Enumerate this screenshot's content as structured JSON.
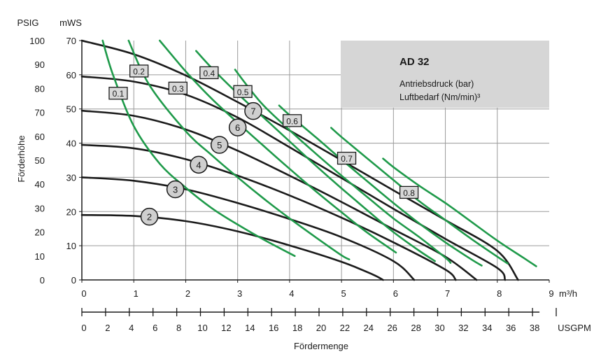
{
  "chart_data": {
    "type": "line",
    "title": "AD 32",
    "legend": [
      "Antriebsdruck (bar)",
      "Luftbedarf (Nm/min)³"
    ],
    "xlabel": "Fördermenge",
    "ylabel": "Förderhöhe",
    "x_unit": "m³/h",
    "x2_unit": "USGPM",
    "y_unit": "mWS",
    "y2_unit": "PSIG",
    "xlim": [
      0,
      9
    ],
    "ylim": [
      0,
      70
    ],
    "x_ticks": [
      "0",
      "1",
      "2",
      "3",
      "4",
      "5",
      "6",
      "7",
      "8",
      "9"
    ],
    "x2_ticks": [
      "0",
      "2",
      "4",
      "6",
      "8",
      "10",
      "12",
      "14",
      "16",
      "18",
      "20",
      "22",
      "24",
      "26",
      "28",
      "30",
      "32",
      "34",
      "36",
      "38"
    ],
    "y_ticks": [
      "0",
      "10",
      "20",
      "30",
      "40",
      "50",
      "60",
      "70"
    ],
    "y2_ticks": [
      "0",
      "10",
      "20",
      "30",
      "40",
      "50",
      "60",
      "70",
      "80",
      "90",
      "100"
    ],
    "grid": true,
    "pressure_curves": [
      {
        "name": "2",
        "points": [
          [
            0,
            19
          ],
          [
            1,
            18.7
          ],
          [
            2,
            17.2
          ],
          [
            3,
            14.2
          ],
          [
            4,
            10.1
          ],
          [
            5,
            5.3
          ],
          [
            5.6,
            1.6
          ],
          [
            5.8,
            0
          ]
        ]
      },
      {
        "name": "3",
        "points": [
          [
            0,
            30
          ],
          [
            1,
            29
          ],
          [
            2,
            26.5
          ],
          [
            3,
            22.5
          ],
          [
            4,
            17.8
          ],
          [
            5,
            12.5
          ],
          [
            6,
            5.5
          ],
          [
            6.4,
            0
          ]
        ]
      },
      {
        "name": "4",
        "points": [
          [
            0,
            39.5
          ],
          [
            1,
            38.5
          ],
          [
            2,
            35.3
          ],
          [
            3,
            30.5
          ],
          [
            4,
            24.7
          ],
          [
            5,
            18.2
          ],
          [
            6,
            11
          ],
          [
            7,
            3
          ],
          [
            7.2,
            0
          ]
        ]
      },
      {
        "name": "5",
        "points": [
          [
            0,
            49.5
          ],
          [
            1,
            48
          ],
          [
            2,
            44
          ],
          [
            3,
            37.8
          ],
          [
            4,
            30.5
          ],
          [
            5,
            22.8
          ],
          [
            6,
            14.8
          ],
          [
            7,
            6.8
          ],
          [
            7.6,
            0
          ]
        ]
      },
      {
        "name": "6",
        "points": [
          [
            0,
            59.5
          ],
          [
            1,
            58
          ],
          [
            2,
            54.2
          ],
          [
            3,
            47.5
          ],
          [
            4,
            38.8
          ],
          [
            5,
            29.8
          ],
          [
            6,
            20.8
          ],
          [
            7,
            12
          ],
          [
            8,
            3.5
          ],
          [
            8.15,
            0
          ]
        ]
      },
      {
        "name": "7",
        "points": [
          [
            0,
            70
          ],
          [
            1,
            66
          ],
          [
            2,
            59.8
          ],
          [
            3,
            52
          ],
          [
            4,
            43.7
          ],
          [
            5,
            35
          ],
          [
            6,
            26.2
          ],
          [
            7,
            17.5
          ],
          [
            8,
            8.5
          ],
          [
            8.4,
            0
          ]
        ]
      }
    ],
    "air_curves": [
      {
        "name": "0.1",
        "points": [
          [
            0.4,
            70
          ],
          [
            0.6,
            60
          ],
          [
            1,
            45
          ],
          [
            1.5,
            34
          ],
          [
            2,
            27
          ],
          [
            2.5,
            21
          ],
          [
            3,
            16.2
          ],
          [
            3.5,
            11.8
          ],
          [
            4.1,
            7
          ]
        ]
      },
      {
        "name": "0.2",
        "points": [
          [
            0.9,
            70
          ],
          [
            1.3,
            57
          ],
          [
            2,
            43.5
          ],
          [
            2.5,
            36.5
          ],
          [
            3,
            30
          ],
          [
            3.5,
            23.8
          ],
          [
            4,
            18
          ],
          [
            4.5,
            12.5
          ],
          [
            5,
            7.2
          ],
          [
            5.15,
            6
          ]
        ]
      },
      {
        "name": "0.3",
        "points": [
          [
            1.5,
            70
          ],
          [
            2,
            61
          ],
          [
            2.5,
            53
          ],
          [
            3,
            46
          ],
          [
            3.5,
            39.2
          ],
          [
            4,
            32.5
          ],
          [
            4.5,
            26
          ],
          [
            5,
            19.8
          ],
          [
            5.5,
            13.8
          ],
          [
            6.05,
            8
          ]
        ]
      },
      {
        "name": "0.4",
        "points": [
          [
            2.2,
            67
          ],
          [
            2.5,
            62
          ],
          [
            3,
            54.5
          ],
          [
            3.5,
            47.5
          ],
          [
            4,
            40.5
          ],
          [
            4.5,
            33.5
          ],
          [
            5,
            26.8
          ],
          [
            5.5,
            20.3
          ],
          [
            6,
            14
          ],
          [
            6.5,
            8.5
          ],
          [
            6.8,
            5.5
          ]
        ]
      },
      {
        "name": "0.5",
        "points": [
          [
            2.95,
            61.5
          ],
          [
            3.2,
            56.5
          ],
          [
            3.5,
            51
          ],
          [
            4,
            43.8
          ],
          [
            4.5,
            37
          ],
          [
            5,
            30.5
          ],
          [
            5.5,
            24.2
          ],
          [
            6,
            18
          ],
          [
            6.5,
            12.5
          ],
          [
            7,
            6.5
          ],
          [
            7.1,
            5
          ]
        ]
      },
      {
        "name": "0.6",
        "points": [
          [
            3.8,
            51
          ],
          [
            4,
            48.2
          ],
          [
            4.5,
            41.8
          ],
          [
            5,
            35.2
          ],
          [
            5.5,
            28.8
          ],
          [
            6,
            22.5
          ],
          [
            6.5,
            16.5
          ],
          [
            7,
            11
          ],
          [
            7.5,
            6
          ],
          [
            7.7,
            4.2
          ]
        ]
      },
      {
        "name": "0.7",
        "points": [
          [
            4.8,
            44.5
          ],
          [
            5,
            41.8
          ],
          [
            5.5,
            35.5
          ],
          [
            6,
            29.2
          ],
          [
            6.5,
            23
          ],
          [
            7,
            17.5
          ],
          [
            7.5,
            12
          ],
          [
            8,
            6.8
          ],
          [
            8.2,
            4.8
          ]
        ]
      },
      {
        "name": "0.8",
        "points": [
          [
            5.8,
            35.5
          ],
          [
            6,
            33
          ],
          [
            6.5,
            27.5
          ],
          [
            7,
            22.5
          ],
          [
            7.5,
            17
          ],
          [
            8,
            11.5
          ],
          [
            8.5,
            6.5
          ],
          [
            8.75,
            4
          ]
        ]
      }
    ],
    "pressure_labels": [
      {
        "text": "2",
        "x": 1.3,
        "y": 18.5
      },
      {
        "text": "3",
        "x": 1.8,
        "y": 26.5
      },
      {
        "text": "4",
        "x": 2.25,
        "y": 33.7
      },
      {
        "text": "5",
        "x": 2.65,
        "y": 39.5
      },
      {
        "text": "6",
        "x": 3.0,
        "y": 44.6
      },
      {
        "text": "7",
        "x": 3.3,
        "y": 49.4
      }
    ],
    "air_labels": [
      {
        "text": "0.1",
        "x": 0.7,
        "y": 54.5
      },
      {
        "text": "0.2",
        "x": 1.1,
        "y": 61.0
      },
      {
        "text": "0.3",
        "x": 1.85,
        "y": 56.0
      },
      {
        "text": "0.4",
        "x": 2.45,
        "y": 60.5
      },
      {
        "text": "0.5",
        "x": 3.1,
        "y": 55.0
      },
      {
        "text": "0.6",
        "x": 4.05,
        "y": 46.5
      },
      {
        "text": "0.7",
        "x": 5.1,
        "y": 35.5
      },
      {
        "text": "0.8",
        "x": 6.3,
        "y": 25.5
      }
    ],
    "colors": {
      "pressure_line": "#1b1b1b",
      "air_line": "#1f9a4a",
      "grid": "#9a9a9a",
      "legend_box": "#d6d6d6",
      "tag_fill": "#d9d9d9",
      "circle_fill": "#cfcfcf"
    }
  }
}
